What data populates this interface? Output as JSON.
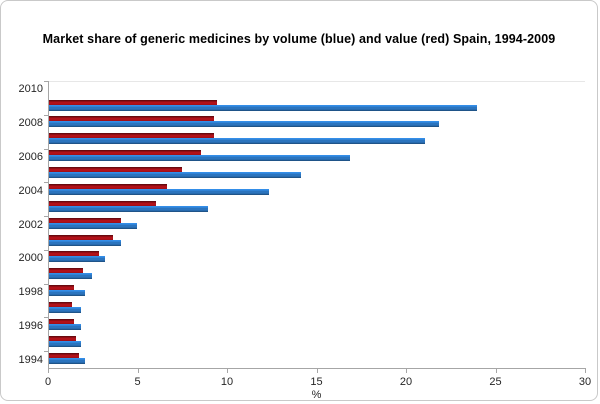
{
  "window": {
    "background_color": "#FFFFFF",
    "border_color": "#C9C9C9"
  },
  "chart_data": {
    "type": "bar",
    "orientation": "horizontal",
    "title": "Market share of generic medicines by volume (blue) and value (red) Spain, 1994-2009",
    "xlabel": "%",
    "xlim": [
      0,
      30
    ],
    "xticks": [
      0,
      5,
      10,
      15,
      20,
      25,
      30
    ],
    "ytick_labels": [
      "2010",
      "2008",
      "2006",
      "2004",
      "2002",
      "2000",
      "1998",
      "1996",
      "1994"
    ],
    "categories_top_to_bottom": [
      "2010",
      "2009",
      "2008",
      "2007",
      "2006",
      "2005",
      "2004",
      "2003",
      "2002",
      "2001",
      "2000",
      "1999",
      "1998",
      "1997",
      "1996",
      "1995",
      "1994"
    ],
    "grid": "off",
    "legend": "none (series identified in title)",
    "series": [
      {
        "name": "value",
        "label": "value (red)",
        "color": "#B11119",
        "values": [
          null,
          9.4,
          9.2,
          9.2,
          8.5,
          7.4,
          6.6,
          6.0,
          4.0,
          3.6,
          2.8,
          1.9,
          1.4,
          1.3,
          1.4,
          1.5,
          1.7
        ]
      },
      {
        "name": "volume",
        "label": "volume (blue)",
        "color": "#2B74BE",
        "values": [
          null,
          23.9,
          21.8,
          21.0,
          16.8,
          14.1,
          12.3,
          8.9,
          4.9,
          4.0,
          3.1,
          2.4,
          2.0,
          1.8,
          1.8,
          1.8,
          2.0
        ]
      }
    ],
    "axis_color": "#A6A6A6",
    "tick_text_color": "#262626"
  }
}
